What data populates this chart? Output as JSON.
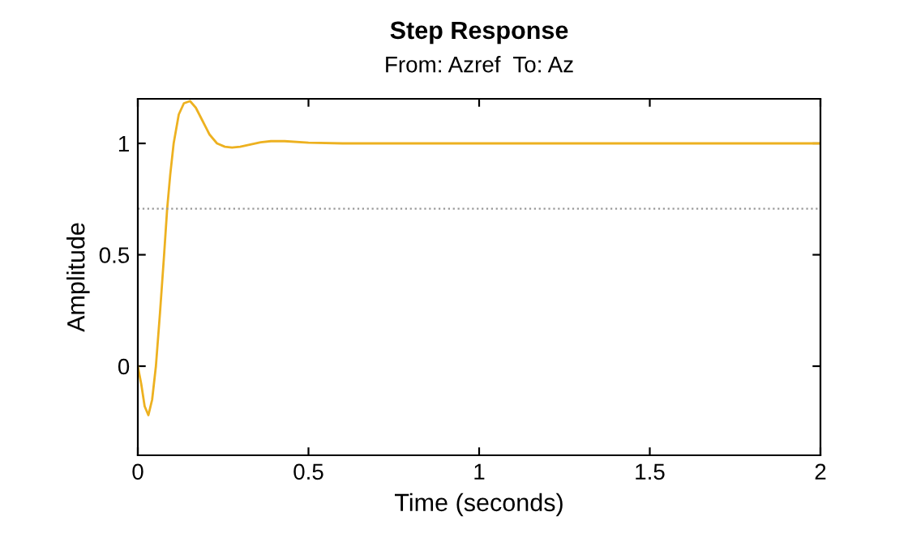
{
  "chart_data": {
    "type": "line",
    "title": "Step Response",
    "subtitle": "From: Azref  To: Az",
    "xlabel": "Time (seconds)",
    "ylabel": "Amplitude",
    "series": [
      {
        "color": "#edb120",
        "x": [
          0,
          0.01,
          0.02,
          0.031,
          0.042,
          0.053,
          0.065,
          0.077,
          0.086,
          0.095,
          0.105,
          0.12,
          0.135,
          0.153,
          0.17,
          0.19,
          0.21,
          0.232,
          0.255,
          0.276,
          0.3,
          0.33,
          0.36,
          0.39,
          0.43,
          0.5,
          0.6,
          0.8,
          1.0,
          1.5,
          2.0
        ],
        "values": [
          0,
          -0.08,
          -0.18,
          -0.22,
          -0.15,
          0,
          0.24,
          0.5,
          0.707,
          0.86,
          1.0,
          1.13,
          1.18,
          1.19,
          1.16,
          1.1,
          1.04,
          1.0,
          0.985,
          0.981,
          0.985,
          0.995,
          1.005,
          1.01,
          1.01,
          1.003,
          1.0,
          1.0,
          1.0,
          1.0,
          1.0
        ]
      }
    ],
    "xlim": [
      0,
      2
    ],
    "ylim": [
      -0.4,
      1.2
    ],
    "xticks": [
      0,
      0.5,
      1,
      1.5,
      2
    ],
    "yticks": [
      0,
      0.5,
      1
    ],
    "ref_lines": [
      {
        "axis": "y",
        "value": 0.707,
        "color": "#999999",
        "line_style": "dotted"
      }
    ],
    "grid": false,
    "legend": false
  }
}
